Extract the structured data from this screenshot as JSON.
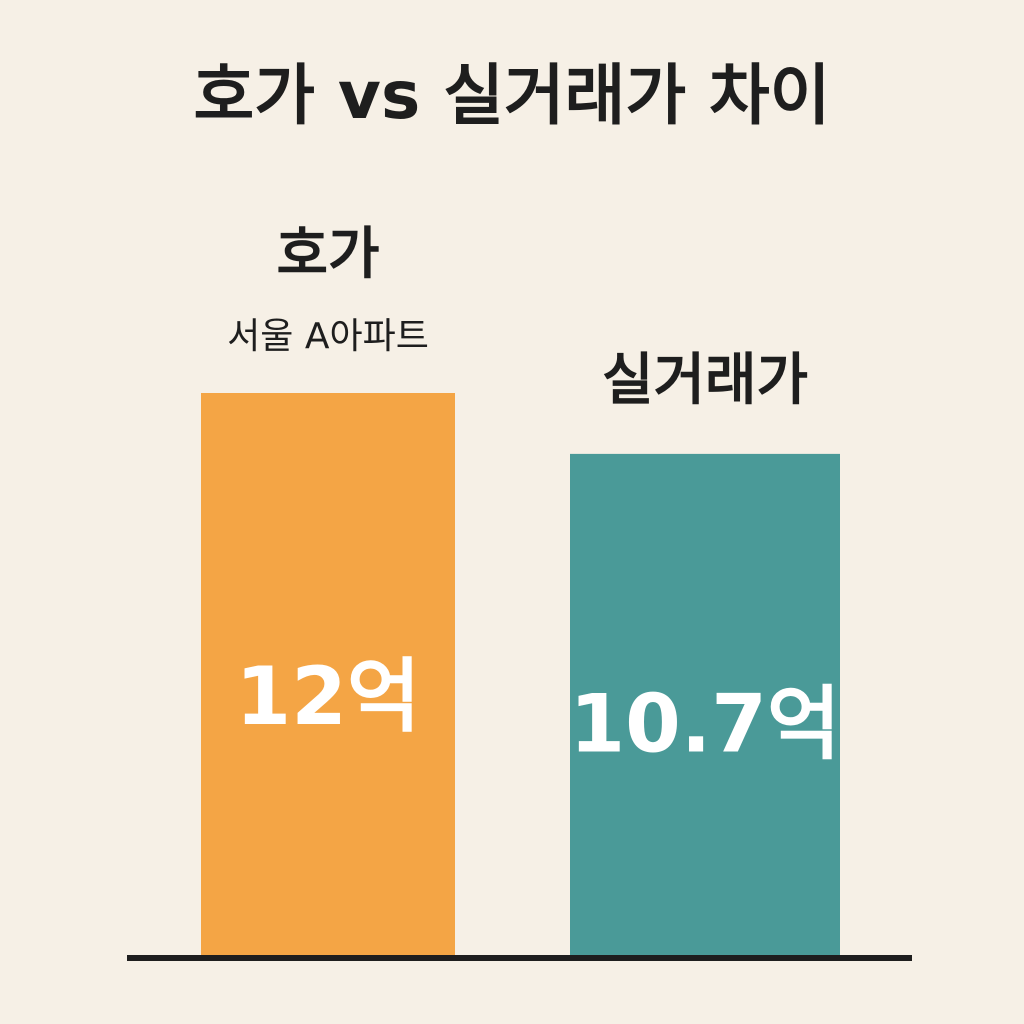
{
  "chart_data": {
    "type": "bar",
    "title": "호가 vs 실거래가 차이",
    "categories": [
      "호가",
      "실거래가"
    ],
    "values": [
      12,
      10.7
    ],
    "value_labels": [
      "12억",
      "10.7억"
    ],
    "colors": [
      "#f4a545",
      "#4a9a98"
    ],
    "annotation": "서울 A아파트"
  }
}
